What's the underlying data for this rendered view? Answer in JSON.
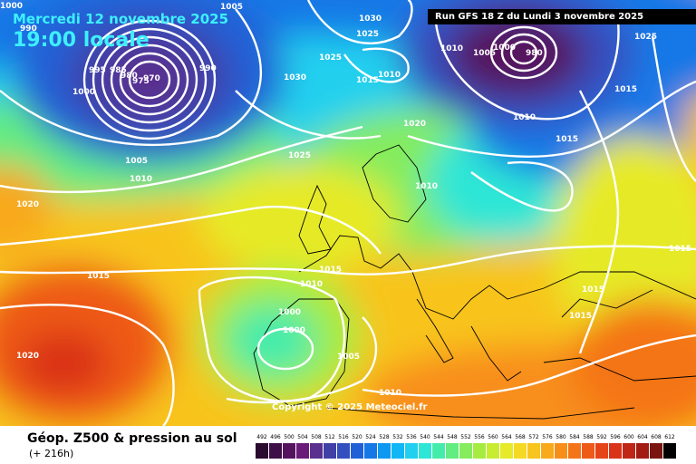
{
  "header": {
    "date": "Mercredi 12 novembre 2025",
    "time": "19:00 locale",
    "run": "Run GFS 18 Z du Lundi 3 novembre 2025"
  },
  "copyright": "Copyright © 2025 Meteociel.fr",
  "footer": {
    "title": "Géop. Z500 & pression au sol",
    "forecast": "(+ 216h)"
  },
  "legend": {
    "values": [
      "492",
      "496",
      "500",
      "504",
      "508",
      "512",
      "516",
      "520",
      "524",
      "528",
      "532",
      "536",
      "540",
      "544",
      "548",
      "552",
      "556",
      "560",
      "564",
      "568",
      "572",
      "576",
      "580",
      "584",
      "588",
      "592",
      "596",
      "600",
      "604",
      "608",
      "612"
    ],
    "colors": [
      "#2a0a2e",
      "#3e0f47",
      "#55135f",
      "#6a1a78",
      "#5a2f8e",
      "#4040a6",
      "#3450bf",
      "#2060d6",
      "#1578e6",
      "#0e98f2",
      "#12b6f5",
      "#21d0ee",
      "#2ee6d6",
      "#44ecab",
      "#62ec82",
      "#84ec5d",
      "#a6ec40",
      "#c8ec30",
      "#e6ea28",
      "#f5da24",
      "#f8c41f",
      "#f8a91c",
      "#f88e1a",
      "#f47418",
      "#ee5a18",
      "#e54418",
      "#d93318",
      "#c02616",
      "#a31c14",
      "#7a1410",
      "#000000"
    ]
  },
  "isobars": [
    "1000",
    "990",
    "1005",
    "995",
    "985",
    "980",
    "975",
    "970",
    "990",
    "1000",
    "1005",
    "1010",
    "1020",
    "1025",
    "1030",
    "1025",
    "1030",
    "1015",
    "1010",
    "1010",
    "1005",
    "1000",
    "980",
    "1010",
    "1025",
    "1015",
    "1020",
    "1025",
    "1015",
    "1015",
    "1015",
    "1015",
    "1010",
    "1015",
    "1000",
    "1000",
    "1005",
    "1010",
    "1020",
    "1010",
    "1015"
  ]
}
